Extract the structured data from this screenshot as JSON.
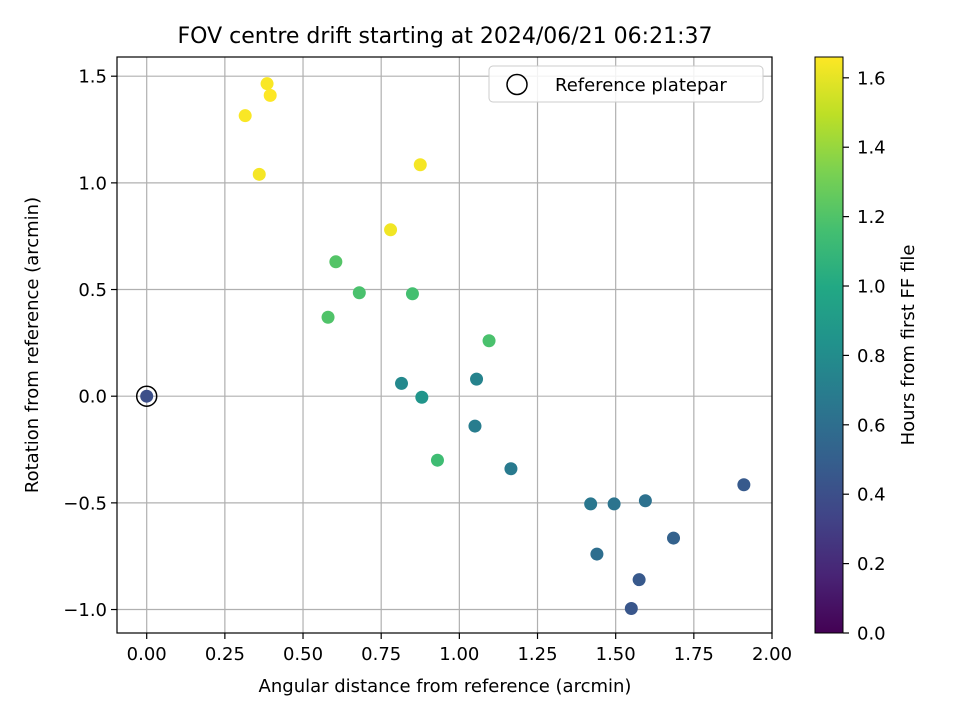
{
  "chart_data": {
    "type": "scatter",
    "title": "FOV centre drift starting at 2024/06/21 06:21:37",
    "xlabel": "Angular distance from reference (arcmin)",
    "ylabel": "Rotation from reference (arcmin)",
    "xlim": [
      -0.095,
      2.0
    ],
    "ylim": [
      -1.11,
      1.59
    ],
    "x_ticks": [
      0.0,
      0.25,
      0.5,
      0.75,
      1.0,
      1.25,
      1.5,
      1.75,
      2.0
    ],
    "x_tick_labels": [
      "0.00",
      "0.25",
      "0.50",
      "0.75",
      "1.00",
      "1.25",
      "1.50",
      "1.75",
      "2.00"
    ],
    "y_ticks": [
      -1.0,
      -0.5,
      0.0,
      0.5,
      1.0,
      1.5
    ],
    "y_tick_labels": [
      "−1.0",
      "−0.5",
      "0.0",
      "0.5",
      "1.0",
      "1.5"
    ],
    "grid": true,
    "legend": {
      "placement": "upper right",
      "entries": [
        "Reference platepar"
      ]
    },
    "reference_point": {
      "x": 0.0,
      "y": 0.0
    },
    "colorbar": {
      "label": "Hours from first FF file",
      "colormap": "viridis",
      "range": [
        0.0,
        1.66
      ],
      "ticks": [
        0.0,
        0.2,
        0.4,
        0.6,
        0.8,
        1.0,
        1.2,
        1.4,
        1.6
      ],
      "tick_labels": [
        "0.0",
        "0.2",
        "0.4",
        "0.6",
        "0.8",
        "1.0",
        "1.2",
        "1.4",
        "1.6"
      ]
    },
    "points": [
      {
        "x": 0.0,
        "y": 0.0,
        "hours": 0.4
      },
      {
        "x": 1.55,
        "y": -0.995,
        "hours": 0.44
      },
      {
        "x": 1.575,
        "y": -0.86,
        "hours": 0.46
      },
      {
        "x": 1.91,
        "y": -0.415,
        "hours": 0.47
      },
      {
        "x": 1.685,
        "y": -0.665,
        "hours": 0.52
      },
      {
        "x": 1.44,
        "y": -0.74,
        "hours": 0.6
      },
      {
        "x": 1.595,
        "y": -0.49,
        "hours": 0.62
      },
      {
        "x": 1.495,
        "y": -0.505,
        "hours": 0.64
      },
      {
        "x": 1.42,
        "y": -0.505,
        "hours": 0.66
      },
      {
        "x": 1.165,
        "y": -0.34,
        "hours": 0.68
      },
      {
        "x": 1.05,
        "y": -0.14,
        "hours": 0.7
      },
      {
        "x": 1.055,
        "y": 0.08,
        "hours": 0.74
      },
      {
        "x": 0.815,
        "y": 0.06,
        "hours": 0.78
      },
      {
        "x": 0.88,
        "y": -0.005,
        "hours": 0.86
      },
      {
        "x": 0.93,
        "y": -0.3,
        "hours": 1.14
      },
      {
        "x": 1.095,
        "y": 0.26,
        "hours": 1.18
      },
      {
        "x": 0.85,
        "y": 0.48,
        "hours": 1.16
      },
      {
        "x": 0.68,
        "y": 0.485,
        "hours": 1.18
      },
      {
        "x": 0.58,
        "y": 0.37,
        "hours": 1.2
      },
      {
        "x": 0.605,
        "y": 0.63,
        "hours": 1.21
      },
      {
        "x": 0.78,
        "y": 0.78,
        "hours": 1.63
      },
      {
        "x": 0.875,
        "y": 1.085,
        "hours": 1.64
      },
      {
        "x": 0.36,
        "y": 1.04,
        "hours": 1.64
      },
      {
        "x": 0.315,
        "y": 1.315,
        "hours": 1.65
      },
      {
        "x": 0.385,
        "y": 1.465,
        "hours": 1.65
      },
      {
        "x": 0.395,
        "y": 1.41,
        "hours": 1.66
      }
    ]
  }
}
